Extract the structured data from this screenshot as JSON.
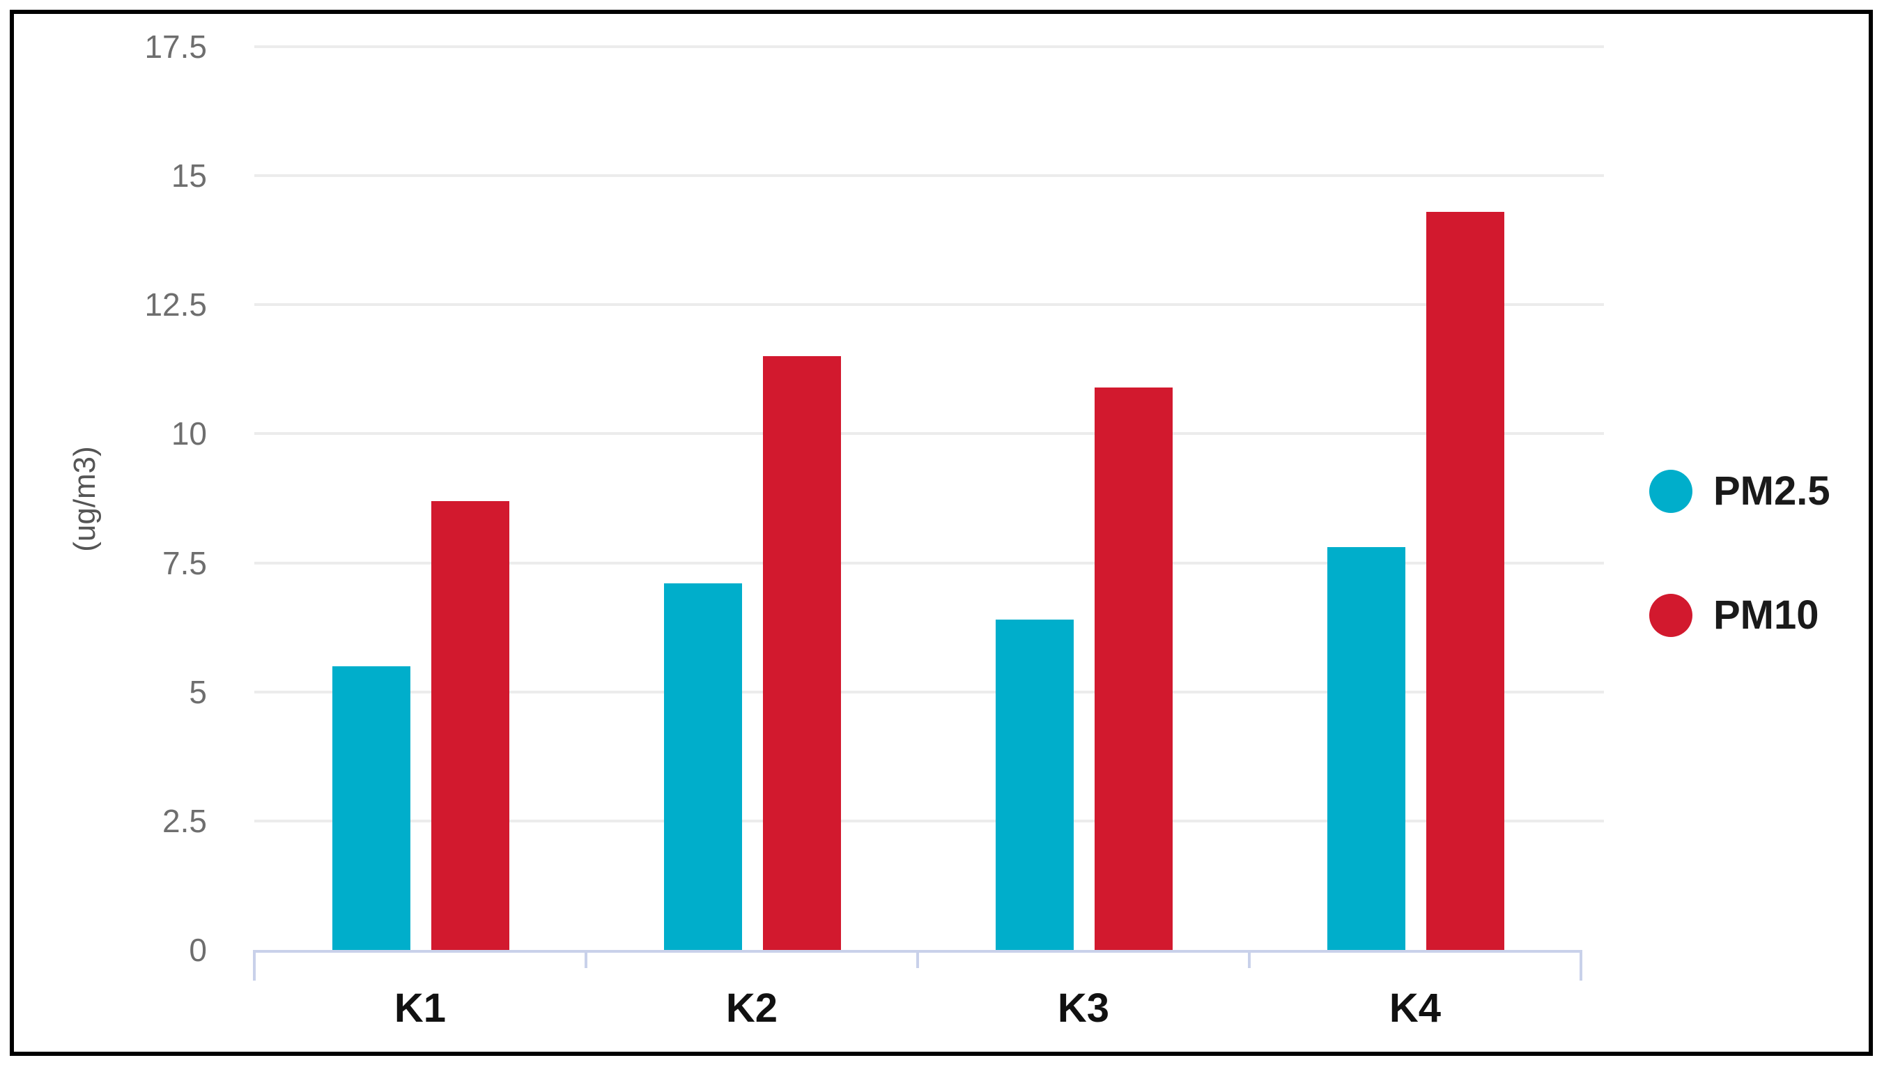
{
  "chart_data": {
    "type": "bar",
    "categories": [
      "K1",
      "K2",
      "K3",
      "K4"
    ],
    "series": [
      {
        "name": "PM2.5",
        "color": "#00AECB",
        "values": [
          5.5,
          7.1,
          6.4,
          7.8
        ]
      },
      {
        "name": "PM10",
        "color": "#D2192E",
        "values": [
          8.7,
          11.5,
          10.9,
          14.3
        ]
      }
    ],
    "title": "",
    "xlabel": "",
    "ylabel": "(ug/m3)",
    "ylim": [
      0,
      17.5
    ],
    "yticks": [
      0,
      2.5,
      5,
      7.5,
      10,
      12.5,
      15,
      17.5
    ],
    "ytick_labels": [
      "0",
      "2.5",
      "5",
      "7.5",
      "10",
      "12.5",
      "15",
      "17.5"
    ],
    "grid": true,
    "legend_position": "right"
  },
  "legend": {
    "items": [
      {
        "label": "PM2.5",
        "color": "#00AECB"
      },
      {
        "label": "PM10",
        "color": "#D2192E"
      }
    ]
  },
  "colors": {
    "bar_teal": "#00AECB",
    "bar_red": "#D2192E",
    "gridline": "#ececec",
    "axis_line": "#c9d1ea",
    "tick_text": "#6e6e6e",
    "label_text": "#111111",
    "frame_border": "#000000",
    "background": "#ffffff"
  }
}
